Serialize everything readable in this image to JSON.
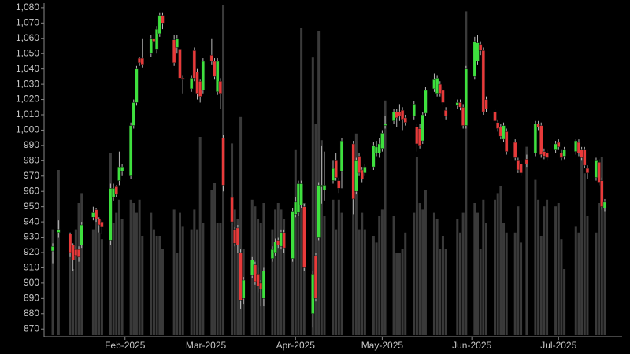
{
  "chart_data": {
    "type": "candlestick",
    "x": [
      "2025-01-07",
      "2025-01-09",
      "2025-01-13",
      "2025-01-14",
      "2025-01-15",
      "2025-01-16",
      "2025-01-17",
      "2025-01-21",
      "2025-01-22",
      "2025-01-23",
      "2025-01-24",
      "2025-01-27",
      "2025-01-28",
      "2025-01-29",
      "2025-01-30",
      "2025-01-31",
      "2025-02-03",
      "2025-02-04",
      "2025-02-05",
      "2025-02-06",
      "2025-02-07",
      "2025-02-10",
      "2025-02-11",
      "2025-02-12",
      "2025-02-13",
      "2025-02-14",
      "2025-02-18",
      "2025-02-19",
      "2025-02-20",
      "2025-02-21",
      "2025-02-24",
      "2025-02-25",
      "2025-02-26",
      "2025-02-27",
      "2025-02-28",
      "2025-03-03",
      "2025-03-04",
      "2025-03-05",
      "2025-03-06",
      "2025-03-07",
      "2025-03-10",
      "2025-03-11",
      "2025-03-12",
      "2025-03-13",
      "2025-03-14",
      "2025-03-17",
      "2025-03-18",
      "2025-03-19",
      "2025-03-20",
      "2025-03-21",
      "2025-03-24",
      "2025-03-25",
      "2025-03-26",
      "2025-03-27",
      "2025-03-28",
      "2025-03-31",
      "2025-04-01",
      "2025-04-02",
      "2025-04-03",
      "2025-04-04",
      "2025-04-07",
      "2025-04-08",
      "2025-04-09",
      "2025-04-10",
      "2025-04-11",
      "2025-04-14",
      "2025-04-15",
      "2025-04-16",
      "2025-04-17",
      "2025-04-21",
      "2025-04-22",
      "2025-04-23",
      "2025-04-24",
      "2025-04-25",
      "2025-04-28",
      "2025-04-29",
      "2025-04-30",
      "2025-05-01",
      "2025-05-02",
      "2025-05-05",
      "2025-05-06",
      "2025-05-07",
      "2025-05-08",
      "2025-05-09",
      "2025-05-12",
      "2025-05-13",
      "2025-05-14",
      "2025-05-15",
      "2025-05-16",
      "2025-05-19",
      "2025-05-20",
      "2025-05-21",
      "2025-05-22",
      "2025-05-23",
      "2025-05-27",
      "2025-05-28",
      "2025-05-29",
      "2025-05-30",
      "2025-06-02",
      "2025-06-03",
      "2025-06-04",
      "2025-06-05",
      "2025-06-06",
      "2025-06-09",
      "2025-06-10",
      "2025-06-11",
      "2025-06-12",
      "2025-06-13",
      "2025-06-16",
      "2025-06-17",
      "2025-06-18",
      "2025-06-20",
      "2025-06-23",
      "2025-06-24",
      "2025-06-25",
      "2025-06-26",
      "2025-06-27",
      "2025-06-30",
      "2025-07-01",
      "2025-07-02",
      "2025-07-03",
      "2025-07-07",
      "2025-07-08",
      "2025-07-09",
      "2025-07-10",
      "2025-07-11",
      "2025-07-14",
      "2025-07-15",
      "2025-07-16",
      "2025-07-17"
    ],
    "open": [
      921,
      933,
      932,
      925,
      922,
      922,
      925,
      943,
      948,
      942,
      940,
      928,
      956,
      963,
      967,
      973,
      970,
      1003,
      1018,
      1047,
      1047,
      1050,
      1060,
      1053,
      1063,
      1075,
      1059,
      1054,
      1053,
      1034,
      1027,
      1052,
      1038,
      1032,
      1026,
      1049,
      1045,
      1025,
      1032,
      995,
      956,
      935,
      936,
      920,
      890,
      905,
      912,
      906,
      900,
      890,
      916,
      920,
      928,
      924,
      933,
      916,
      945,
      946,
      951,
      950,
      880,
      918,
      930,
      963,
      961,
      967,
      980,
      967,
      973,
      991,
      960,
      983,
      974,
      972,
      976,
      985,
      985,
      988,
      1003,
      1006,
      1012,
      1012,
      1013,
      1008,
      1009,
      1002,
      1001,
      993,
      1011,
      1027,
      1024,
      1030,
      1026,
      1013,
      1016,
      1018,
      1015,
      1003,
      1035,
      1045,
      1056,
      1052,
      1020,
      1012,
      1005,
      1002,
      994,
      999,
      992,
      980,
      978,
      981,
      985,
      1004,
      1003,
      986,
      985,
      987,
      992,
      985,
      983,
      986,
      992,
      987,
      987,
      975,
      969,
      979,
      967,
      949
    ],
    "high": [
      926,
      941,
      933,
      926,
      924,
      924,
      940,
      950,
      949,
      943,
      941,
      965,
      965,
      964,
      986,
      978,
      1005,
      1020,
      1042,
      1048,
      1060,
      1062,
      1063,
      1068,
      1077,
      1077,
      1062,
      1062,
      1055,
      1036,
      1036,
      1054,
      1040,
      1033,
      1047,
      1060,
      1047,
      1047,
      1034,
      997,
      958,
      937,
      938,
      922,
      904,
      917,
      914,
      910,
      902,
      910,
      924,
      929,
      930,
      935,
      935,
      949,
      956,
      967,
      967,
      952,
      908,
      920,
      966,
      990,
      986,
      980,
      985,
      969,
      995,
      993,
      982,
      985,
      976,
      978,
      992,
      993,
      995,
      1000,
      1009,
      1014,
      1014,
      1017,
      1015,
      1010,
      1019,
      1004,
      1004,
      1012,
      1028,
      1037,
      1036,
      1032,
      1028,
      1015,
      1020,
      1020,
      1017,
      1042,
      1061,
      1062,
      1058,
      1054,
      1022,
      1014,
      1007,
      1004,
      1005,
      1001,
      994,
      982,
      980,
      984,
      1006,
      1006,
      1005,
      988,
      987,
      993,
      994,
      987,
      989,
      994,
      994,
      989,
      989,
      977,
      982,
      981,
      969,
      955
    ],
    "low": [
      913,
      930,
      917,
      908,
      915,
      914,
      923,
      941,
      940,
      933,
      932,
      925,
      954,
      956,
      964,
      970,
      968,
      1001,
      1016,
      1042,
      1041,
      1048,
      1056,
      1050,
      1061,
      1066,
      1042,
      1050,
      1032,
      1024,
      1025,
      1032,
      1020,
      1018,
      1024,
      1043,
      1033,
      1023,
      1014,
      960,
      938,
      924,
      920,
      883,
      886,
      903,
      899,
      894,
      885,
      885,
      914,
      918,
      923,
      922,
      920,
      914,
      943,
      944,
      949,
      908,
      871,
      888,
      928,
      952,
      954,
      965,
      967,
      959,
      962,
      945,
      958,
      970,
      966,
      970,
      974,
      983,
      982,
      986,
      1001,
      1004,
      1002,
      1006,
      1000,
      1003,
      1007,
      986,
      988,
      991,
      1009,
      1025,
      1022,
      1022,
      1016,
      1007,
      1014,
      1013,
      1001,
      1001,
      1033,
      1043,
      1049,
      1010,
      1012,
      1004,
      999,
      994,
      992,
      984,
      980,
      972,
      970,
      976,
      983,
      1000,
      982,
      981,
      980,
      985,
      987,
      980,
      981,
      984,
      983,
      980,
      975,
      968,
      967,
      964,
      948,
      947
    ],
    "close": [
      924,
      935,
      920,
      915,
      918,
      917,
      938,
      946,
      942,
      938,
      937,
      962,
      962,
      958,
      976,
      976,
      1003,
      1018,
      1040,
      1044,
      1043,
      1060,
      1058,
      1066,
      1075,
      1070,
      1044,
      1060,
      1034,
      1033,
      1034,
      1034,
      1024,
      1022,
      1045,
      1045,
      1035,
      1045,
      1024,
      964,
      940,
      926,
      925,
      889,
      902,
      915,
      901,
      898,
      896,
      908,
      922,
      927,
      925,
      933,
      923,
      947,
      953,
      965,
      965,
      910,
      906,
      890,
      964,
      964,
      964,
      975,
      969,
      962,
      993,
      955,
      980,
      972,
      968,
      976,
      990,
      989,
      991,
      998,
      1004,
      1012,
      1008,
      1009,
      1007,
      1005,
      1017,
      991,
      990,
      1010,
      1026,
      1033,
      1034,
      1024,
      1018,
      1009,
      1018,
      1015,
      1003,
      1040,
      1058,
      1057,
      1052,
      1012,
      1014,
      1006,
      1001,
      996,
      1003,
      986,
      982,
      974,
      972,
      978,
      1004,
      1002,
      984,
      983,
      982,
      991,
      989,
      982,
      987,
      993,
      985,
      982,
      977,
      972,
      980,
      966,
      950,
      953
    ],
    "volume": [
      32,
      50,
      30,
      20,
      32,
      40,
      43,
      32,
      35,
      31,
      29,
      55,
      34,
      37,
      41,
      35,
      41,
      40,
      37,
      41,
      30,
      37,
      32,
      30,
      30,
      26,
      38,
      25,
      37,
      33,
      32,
      38,
      32,
      60,
      34,
      44,
      46,
      34,
      34,
      100,
      58,
      38,
      35,
      66,
      26,
      41,
      39,
      35,
      34,
      40,
      32,
      38,
      40,
      38,
      35,
      37,
      56,
      42,
      93,
      40,
      84,
      64,
      92,
      59,
      36,
      41,
      32,
      41,
      37,
      51,
      61,
      32,
      37,
      32,
      30,
      28,
      36,
      38,
      71,
      36,
      25,
      25,
      26,
      31,
      37,
      54,
      40,
      38,
      44,
      37,
      35,
      26,
      30,
      26,
      35,
      31,
      37,
      98,
      40,
      37,
      26,
      41,
      34,
      41,
      43,
      45,
      34,
      31,
      31,
      39,
      28,
      57,
      47,
      41,
      30,
      39,
      41,
      39,
      40,
      29,
      20,
      33,
      31,
      55,
      49,
      36,
      31,
      40,
      54,
      39
    ],
    "up_color": "#3ee03e",
    "down_color": "#e83a3a",
    "volume_color": "#3a3a3a",
    "xlim": [
      "2025-01-04",
      "2025-07-23"
    ],
    "xticks": [
      {
        "value": "2025-02-01",
        "label": "Feb-2025"
      },
      {
        "value": "2025-03-01",
        "label": "Mar-2025"
      },
      {
        "value": "2025-04-01",
        "label": "Apr-2025"
      },
      {
        "value": "2025-05-01",
        "label": "May-2025"
      },
      {
        "value": "2025-06-01",
        "label": "Jun-2025"
      },
      {
        "value": "2025-07-01",
        "label": "Jul-2025"
      }
    ],
    "ylim": [
      866,
      1082
    ],
    "yticks": [
      870,
      880,
      890,
      900,
      910,
      920,
      930,
      940,
      950,
      960,
      970,
      980,
      990,
      {
        "value": 1000,
        "label": "1,000"
      },
      {
        "value": 1010,
        "label": "1,010"
      },
      {
        "value": 1020,
        "label": "1,020"
      },
      {
        "value": 1030,
        "label": "1,030"
      },
      {
        "value": 1040,
        "label": "1,040"
      },
      {
        "value": 1050,
        "label": "1,050"
      },
      {
        "value": 1060,
        "label": "1,060"
      },
      {
        "value": 1070,
        "label": "1,070"
      },
      {
        "value": 1080,
        "label": "1,080"
      }
    ],
    "y2lim": [
      0,
      100
    ]
  }
}
